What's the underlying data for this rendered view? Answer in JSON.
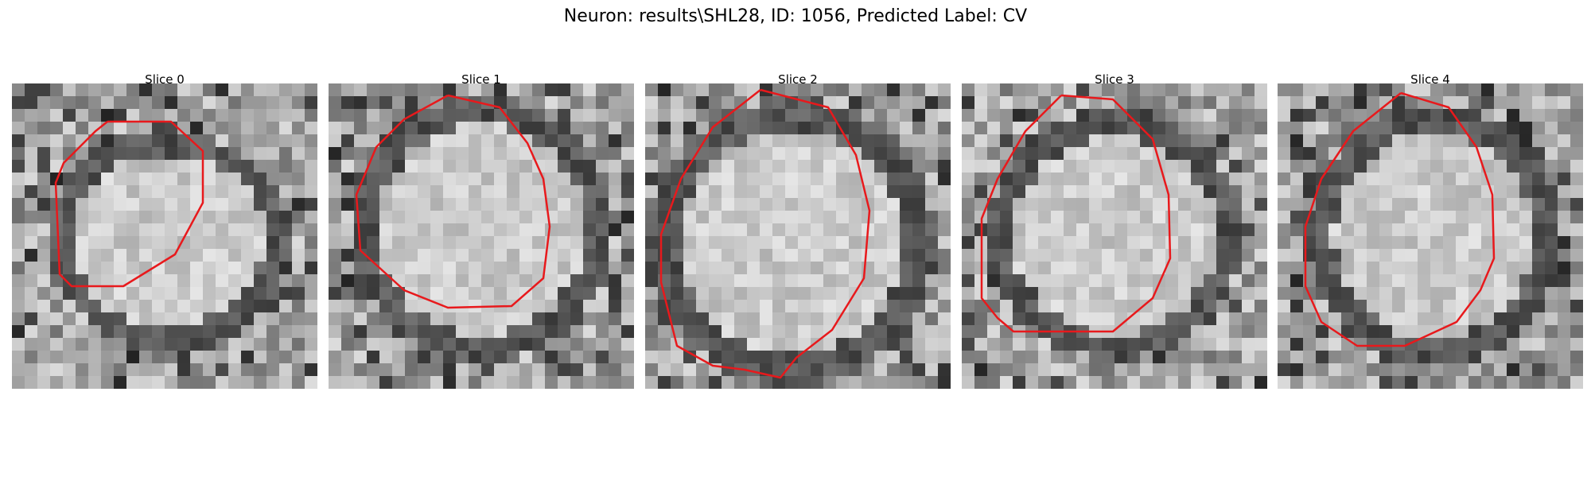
{
  "figure": {
    "title": "Neuron: results\\SHL28, ID: 1056, Predicted Label: CV",
    "contour_color": "#e8191c",
    "panels": [
      {
        "label": "Slice 0"
      },
      {
        "label": "Slice 1"
      },
      {
        "label": "Slice 2"
      },
      {
        "label": "Slice 3"
      },
      {
        "label": "Slice 4"
      }
    ]
  }
}
